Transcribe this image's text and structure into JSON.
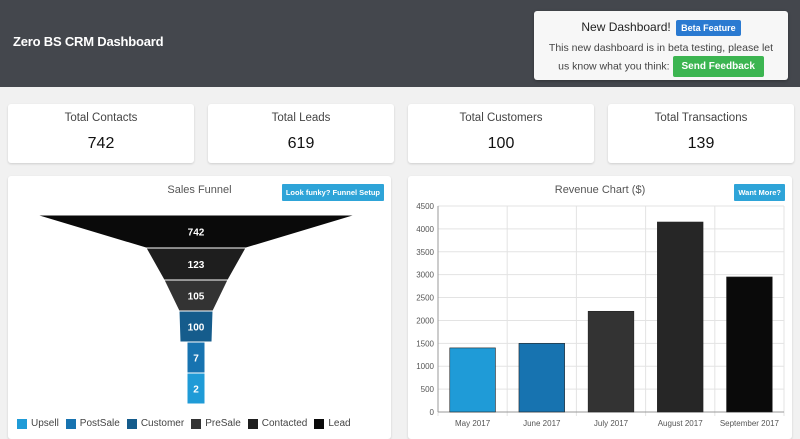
{
  "header": {
    "title": "Zero BS CRM Dashboard"
  },
  "notice": {
    "title": "New Dashboard!",
    "badge": "Beta Feature",
    "text": "This new dashboard is in beta testing, please let us know what you think:",
    "feedback_button": "Send Feedback"
  },
  "stats": [
    {
      "label": "Total Contacts",
      "value": "742"
    },
    {
      "label": "Total Leads",
      "value": "619"
    },
    {
      "label": "Total Customers",
      "value": "100"
    },
    {
      "label": "Total Transactions",
      "value": "139"
    }
  ],
  "funnel": {
    "title": "Sales Funnel",
    "button": "Look funky? Funnel Setup",
    "legend": [
      {
        "label": "Upsell",
        "color": "#1f9bd7"
      },
      {
        "label": "PostSale",
        "color": "#1773b0"
      },
      {
        "label": "Customer",
        "color": "#155c8c"
      },
      {
        "label": "PreSale",
        "color": "#333333"
      },
      {
        "label": "Contacted",
        "color": "#1e1e1e"
      },
      {
        "label": "Lead",
        "color": "#0a0a0a"
      }
    ]
  },
  "revenue": {
    "title": "Revenue Chart ($)",
    "button": "Want More?"
  },
  "chart_data": [
    {
      "type": "bar",
      "title": "Sales Funnel",
      "categories": [
        "Lead",
        "Contacted",
        "PreSale",
        "Customer",
        "PostSale",
        "Upsell"
      ],
      "values": [
        742,
        123,
        105,
        100,
        7,
        2
      ],
      "colors": [
        "#0a0a0a",
        "#1e1e1e",
        "#333333",
        "#155c8c",
        "#1773b0",
        "#1f9bd7"
      ]
    },
    {
      "type": "bar",
      "title": "Revenue Chart ($)",
      "categories": [
        "May 2017",
        "June 2017",
        "July 2017",
        "August 2017",
        "September 2017"
      ],
      "values": [
        1400,
        1500,
        2200,
        4150,
        2950
      ],
      "colors": [
        "#1f9bd7",
        "#1773b0",
        "#333333",
        "#262626",
        "#0a0a0a"
      ],
      "ylim": [
        0,
        4500
      ],
      "yticks": [
        0,
        500,
        1000,
        1500,
        2000,
        2500,
        3000,
        3500,
        4000,
        4500
      ],
      "grid": true
    }
  ]
}
